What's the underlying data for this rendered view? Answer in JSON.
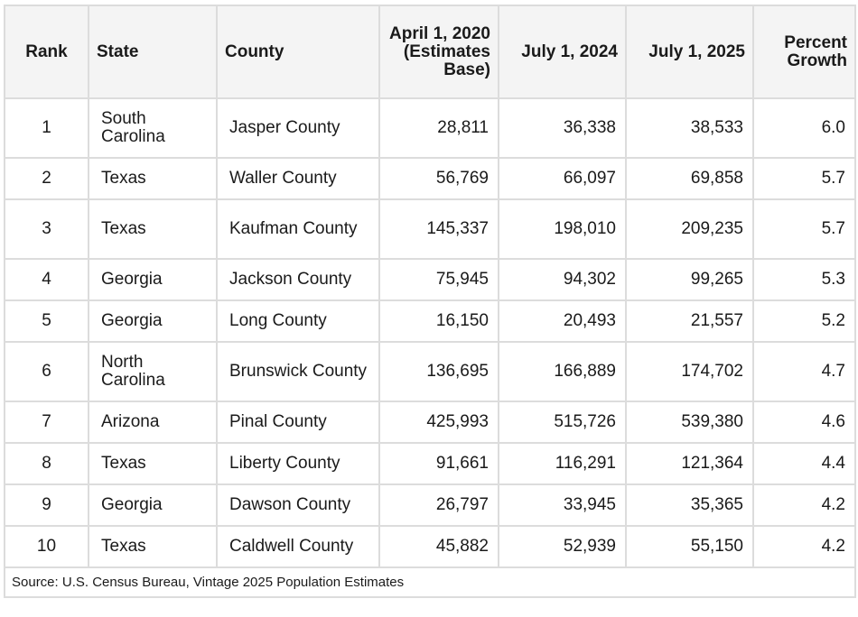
{
  "headers": [
    "Rank",
    "State",
    "County",
    "April 1, 2020 (Estimates Base)",
    "July 1, 2024",
    "July 1, 2025",
    "Percent Growth"
  ],
  "rows": [
    [
      "1",
      "South Carolina",
      "Jasper County",
      "28,811",
      "36,338",
      "38,533",
      "6.0"
    ],
    [
      "2",
      "Texas",
      "Waller County",
      "56,769",
      "66,097",
      "69,858",
      "5.7"
    ],
    [
      "3",
      "Texas",
      "Kaufman County",
      "145,337",
      "198,010",
      "209,235",
      "5.7"
    ],
    [
      "4",
      "Georgia",
      "Jackson County",
      "75,945",
      "94,302",
      "99,265",
      "5.3"
    ],
    [
      "5",
      "Georgia",
      "Long County",
      "16,150",
      "20,493",
      "21,557",
      "5.2"
    ],
    [
      "6",
      "North Carolina",
      "Brunswick County",
      "136,695",
      "166,889",
      "174,702",
      "4.7"
    ],
    [
      "7",
      "Arizona",
      "Pinal County",
      "425,993",
      "515,726",
      "539,380",
      "4.6"
    ],
    [
      "8",
      "Texas",
      "Liberty County",
      "91,661",
      "116,291",
      "121,364",
      "4.4"
    ],
    [
      "9",
      "Georgia",
      "Dawson County",
      "26,797",
      "33,945",
      "35,365",
      "4.2"
    ],
    [
      "10",
      "Texas",
      "Caldwell County",
      "45,882",
      "52,939",
      "55,150",
      "4.2"
    ]
  ],
  "source": "Source: U.S. Census Bureau, Vintage 2025 Population Estimates"
}
